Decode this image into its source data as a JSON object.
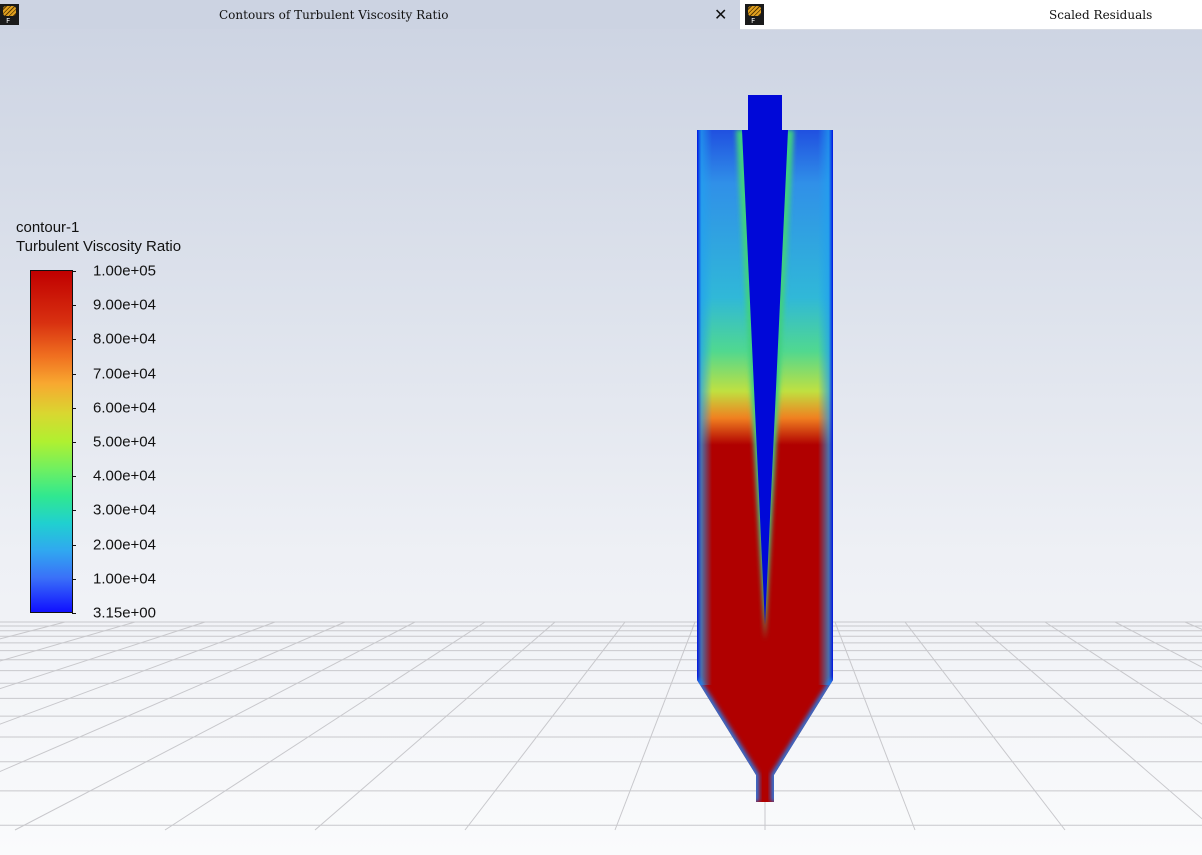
{
  "tabs": [
    {
      "title": "Contours of Turbulent Viscosity Ratio",
      "active": true,
      "icon": "fluent-app-icon",
      "closable": true
    },
    {
      "title": "Scaled Residuals",
      "active": false,
      "icon": "fluent-app-icon"
    }
  ],
  "legend": {
    "name": "contour-1",
    "variable": "Turbulent Viscosity Ratio",
    "labels": [
      "1.00e+05",
      "9.00e+04",
      "8.00e+04",
      "7.00e+04",
      "6.00e+04",
      "5.00e+04",
      "4.00e+04",
      "3.00e+04",
      "2.00e+04",
      "1.00e+04",
      "3.15e+00"
    ],
    "colormap": [
      "#c00000",
      "#f07020",
      "#d8d830",
      "#70f060",
      "#20d0d0",
      "#3a70f8",
      "#1010ff"
    ]
  }
}
